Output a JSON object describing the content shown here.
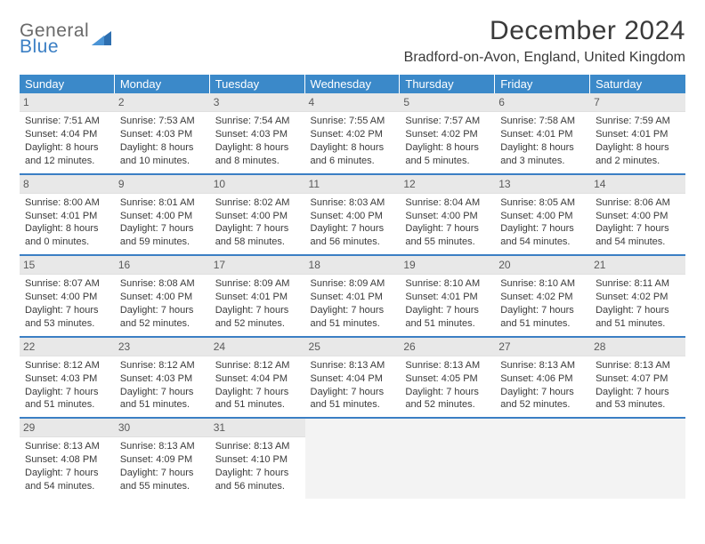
{
  "logo": {
    "line1": "General",
    "line2": "Blue"
  },
  "title": "December 2024",
  "location": "Bradford-on-Avon, England, United Kingdom",
  "colors": {
    "header_bg": "#3b89c9",
    "header_text": "#ffffff",
    "daynum_bg": "#e8e8e8",
    "week_divider": "#3b7fc4",
    "empty_bg": "#f3f3f3",
    "body_text": "#3a3a3a",
    "logo_gray": "#6a6a6a",
    "logo_blue": "#3b7fc4"
  },
  "dow": [
    "Sunday",
    "Monday",
    "Tuesday",
    "Wednesday",
    "Thursday",
    "Friday",
    "Saturday"
  ],
  "weeks": [
    [
      {
        "n": "1",
        "sr": "7:51 AM",
        "ss": "4:04 PM",
        "dl": "8 hours and 12 minutes."
      },
      {
        "n": "2",
        "sr": "7:53 AM",
        "ss": "4:03 PM",
        "dl": "8 hours and 10 minutes."
      },
      {
        "n": "3",
        "sr": "7:54 AM",
        "ss": "4:03 PM",
        "dl": "8 hours and 8 minutes."
      },
      {
        "n": "4",
        "sr": "7:55 AM",
        "ss": "4:02 PM",
        "dl": "8 hours and 6 minutes."
      },
      {
        "n": "5",
        "sr": "7:57 AM",
        "ss": "4:02 PM",
        "dl": "8 hours and 5 minutes."
      },
      {
        "n": "6",
        "sr": "7:58 AM",
        "ss": "4:01 PM",
        "dl": "8 hours and 3 minutes."
      },
      {
        "n": "7",
        "sr": "7:59 AM",
        "ss": "4:01 PM",
        "dl": "8 hours and 2 minutes."
      }
    ],
    [
      {
        "n": "8",
        "sr": "8:00 AM",
        "ss": "4:01 PM",
        "dl": "8 hours and 0 minutes."
      },
      {
        "n": "9",
        "sr": "8:01 AM",
        "ss": "4:00 PM",
        "dl": "7 hours and 59 minutes."
      },
      {
        "n": "10",
        "sr": "8:02 AM",
        "ss": "4:00 PM",
        "dl": "7 hours and 58 minutes."
      },
      {
        "n": "11",
        "sr": "8:03 AM",
        "ss": "4:00 PM",
        "dl": "7 hours and 56 minutes."
      },
      {
        "n": "12",
        "sr": "8:04 AM",
        "ss": "4:00 PM",
        "dl": "7 hours and 55 minutes."
      },
      {
        "n": "13",
        "sr": "8:05 AM",
        "ss": "4:00 PM",
        "dl": "7 hours and 54 minutes."
      },
      {
        "n": "14",
        "sr": "8:06 AM",
        "ss": "4:00 PM",
        "dl": "7 hours and 54 minutes."
      }
    ],
    [
      {
        "n": "15",
        "sr": "8:07 AM",
        "ss": "4:00 PM",
        "dl": "7 hours and 53 minutes."
      },
      {
        "n": "16",
        "sr": "8:08 AM",
        "ss": "4:00 PM",
        "dl": "7 hours and 52 minutes."
      },
      {
        "n": "17",
        "sr": "8:09 AM",
        "ss": "4:01 PM",
        "dl": "7 hours and 52 minutes."
      },
      {
        "n": "18",
        "sr": "8:09 AM",
        "ss": "4:01 PM",
        "dl": "7 hours and 51 minutes."
      },
      {
        "n": "19",
        "sr": "8:10 AM",
        "ss": "4:01 PM",
        "dl": "7 hours and 51 minutes."
      },
      {
        "n": "20",
        "sr": "8:10 AM",
        "ss": "4:02 PM",
        "dl": "7 hours and 51 minutes."
      },
      {
        "n": "21",
        "sr": "8:11 AM",
        "ss": "4:02 PM",
        "dl": "7 hours and 51 minutes."
      }
    ],
    [
      {
        "n": "22",
        "sr": "8:12 AM",
        "ss": "4:03 PM",
        "dl": "7 hours and 51 minutes."
      },
      {
        "n": "23",
        "sr": "8:12 AM",
        "ss": "4:03 PM",
        "dl": "7 hours and 51 minutes."
      },
      {
        "n": "24",
        "sr": "8:12 AM",
        "ss": "4:04 PM",
        "dl": "7 hours and 51 minutes."
      },
      {
        "n": "25",
        "sr": "8:13 AM",
        "ss": "4:04 PM",
        "dl": "7 hours and 51 minutes."
      },
      {
        "n": "26",
        "sr": "8:13 AM",
        "ss": "4:05 PM",
        "dl": "7 hours and 52 minutes."
      },
      {
        "n": "27",
        "sr": "8:13 AM",
        "ss": "4:06 PM",
        "dl": "7 hours and 52 minutes."
      },
      {
        "n": "28",
        "sr": "8:13 AM",
        "ss": "4:07 PM",
        "dl": "7 hours and 53 minutes."
      }
    ],
    [
      {
        "n": "29",
        "sr": "8:13 AM",
        "ss": "4:08 PM",
        "dl": "7 hours and 54 minutes."
      },
      {
        "n": "30",
        "sr": "8:13 AM",
        "ss": "4:09 PM",
        "dl": "7 hours and 55 minutes."
      },
      {
        "n": "31",
        "sr": "8:13 AM",
        "ss": "4:10 PM",
        "dl": "7 hours and 56 minutes."
      },
      {
        "empty": true
      },
      {
        "empty": true
      },
      {
        "empty": true
      },
      {
        "empty": true
      }
    ]
  ],
  "labels": {
    "sunrise": "Sunrise:",
    "sunset": "Sunset:",
    "daylight": "Daylight:"
  }
}
